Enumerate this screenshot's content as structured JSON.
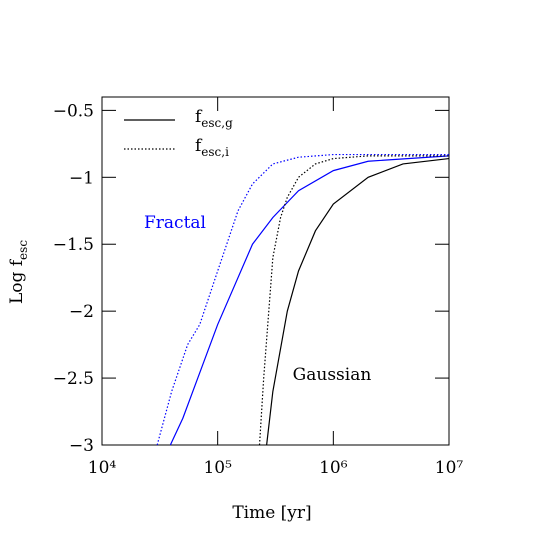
{
  "chart_data": {
    "type": "line",
    "xscale": "log",
    "xlabel": "Time [yr]",
    "ylabel": "Log f",
    "ylabel_sub": "esc",
    "xlim": [
      10000,
      10000000
    ],
    "xticks": [
      {
        "value": 10000,
        "label": "10⁴"
      },
      {
        "value": 100000,
        "label": "10⁵"
      },
      {
        "value": 1000000,
        "label": "10⁶"
      },
      {
        "value": 10000000,
        "label": "10⁷"
      }
    ],
    "ylim": [
      -3,
      -0.4
    ],
    "yticks": [
      {
        "value": -3,
        "label": "−3"
      },
      {
        "value": -2.5,
        "label": "−2.5"
      },
      {
        "value": -2,
        "label": "−2"
      },
      {
        "value": -1.5,
        "label": "−1.5"
      },
      {
        "value": -1,
        "label": "−1"
      },
      {
        "value": -0.5,
        "label": "−0.5"
      }
    ],
    "legend": [
      {
        "label": "f",
        "sub": "esc,g",
        "linestyle": "solid"
      },
      {
        "label": "f",
        "sub": "esc,i",
        "linestyle": "dotted"
      }
    ],
    "annotations": [
      {
        "text": "Fractal",
        "color": "#0000ff"
      },
      {
        "text": "Gaussian",
        "color": "#000000"
      }
    ],
    "series": [
      {
        "color": "#0000ff",
        "linestyle": "solid",
        "x": [
          39000,
          50000,
          100000,
          200000,
          300000,
          500000,
          1000000,
          2000000,
          10000000
        ],
        "values": [
          -3,
          -2.8,
          -2.1,
          -1.5,
          -1.3,
          -1.1,
          -0.95,
          -0.88,
          -0.84
        ]
      },
      {
        "color": "#0000ff",
        "linestyle": "dotted",
        "x": [
          30000,
          40000,
          55000,
          70000,
          100000,
          150000,
          200000,
          300000,
          500000,
          1000000,
          10000000
        ],
        "values": [
          -3,
          -2.6,
          -2.25,
          -2.1,
          -1.7,
          -1.25,
          -1.05,
          -0.9,
          -0.85,
          -0.83,
          -0.83
        ]
      },
      {
        "color": "#000000",
        "linestyle": "dotted",
        "x": [
          230000,
          250000,
          300000,
          350000,
          400000,
          500000,
          700000,
          1000000,
          2000000,
          10000000
        ],
        "values": [
          -3,
          -2.5,
          -1.6,
          -1.3,
          -1.15,
          -1.0,
          -0.9,
          -0.86,
          -0.84,
          -0.84
        ]
      },
      {
        "color": "#000000",
        "linestyle": "solid",
        "x": [
          265000,
          300000,
          400000,
          500000,
          700000,
          1000000,
          2000000,
          4000000,
          10000000
        ],
        "values": [
          -3,
          -2.6,
          -2.0,
          -1.7,
          -1.4,
          -1.2,
          -1.0,
          -0.9,
          -0.86
        ]
      }
    ]
  }
}
